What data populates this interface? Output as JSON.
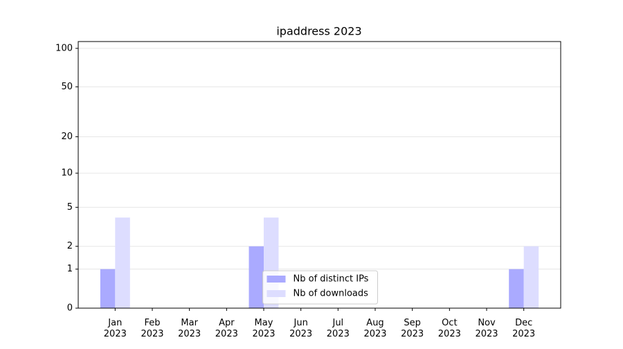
{
  "chart_data": {
    "type": "bar",
    "title": "ipaddress 2023",
    "categories": [
      "Jan\n2023",
      "Feb\n2023",
      "Mar\n2023",
      "Apr\n2023",
      "May\n2023",
      "Jun\n2023",
      "Jul\n2023",
      "Aug\n2023",
      "Sep\n2023",
      "Oct\n2023",
      "Nov\n2023",
      "Dec\n2023"
    ],
    "series": [
      {
        "name": "Nb of distinct IPs",
        "color": "#aaaaff",
        "values": [
          1,
          0,
          0,
          0,
          2,
          0,
          0,
          0,
          0,
          0,
          0,
          1
        ]
      },
      {
        "name": "Nb of downloads",
        "color": "#ddddff",
        "values": [
          4,
          0,
          0,
          0,
          4,
          0,
          0,
          0,
          0,
          0,
          0,
          2
        ]
      }
    ],
    "yscale": "log1p",
    "ylim": [
      0,
      113
    ],
    "yticks": [
      0,
      1,
      2,
      5,
      10,
      20,
      50,
      100
    ],
    "grid": true,
    "legend": "lower center"
  }
}
